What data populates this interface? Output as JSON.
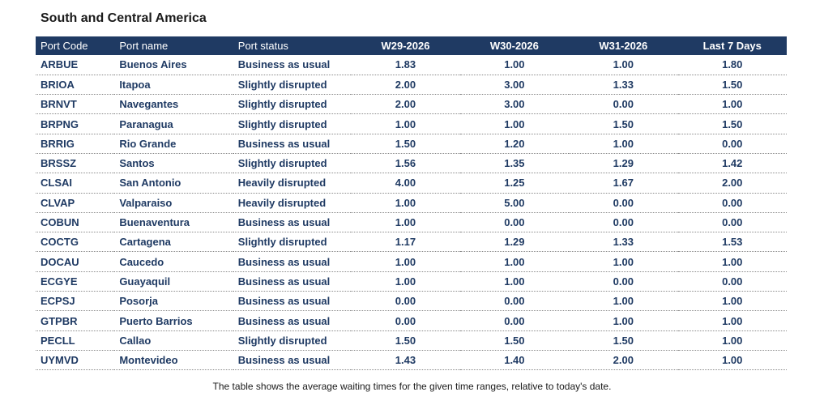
{
  "title": "South and Central America",
  "headers": [
    "Port Code",
    "Port name",
    "Port status",
    "W29-2026",
    "W30-2026",
    "W31-2026",
    "Last 7 Days"
  ],
  "rows": [
    [
      "ARBUE",
      "Buenos Aires",
      "Business as usual",
      "1.83",
      "1.00",
      "1.00",
      "1.80"
    ],
    [
      "BRIOA",
      "Itapoa",
      "Slightly disrupted",
      "2.00",
      "3.00",
      "1.33",
      "1.50"
    ],
    [
      "BRNVT",
      "Navegantes",
      "Slightly disrupted",
      "2.00",
      "3.00",
      "0.00",
      "1.00"
    ],
    [
      "BRPNG",
      "Paranagua",
      "Slightly disrupted",
      "1.00",
      "1.00",
      "1.50",
      "1.50"
    ],
    [
      "BRRIG",
      "Rio Grande",
      "Business as usual",
      "1.50",
      "1.20",
      "1.00",
      "0.00"
    ],
    [
      "BRSSZ",
      "Santos",
      "Slightly disrupted",
      "1.56",
      "1.35",
      "1.29",
      "1.42"
    ],
    [
      "CLSAI",
      "San Antonio",
      "Heavily disrupted",
      "4.00",
      "1.25",
      "1.67",
      "2.00"
    ],
    [
      "CLVAP",
      "Valparaiso",
      "Heavily disrupted",
      "1.00",
      "5.00",
      "0.00",
      "0.00"
    ],
    [
      "COBUN",
      "Buenaventura",
      "Business as usual",
      "1.00",
      "0.00",
      "0.00",
      "0.00"
    ],
    [
      "COCTG",
      "Cartagena",
      "Slightly disrupted",
      "1.17",
      "1.29",
      "1.33",
      "1.53"
    ],
    [
      "DOCAU",
      "Caucedo",
      "Business as usual",
      "1.00",
      "1.00",
      "1.00",
      "1.00"
    ],
    [
      "ECGYE",
      "Guayaquil",
      "Business as usual",
      "1.00",
      "1.00",
      "0.00",
      "0.00"
    ],
    [
      "ECPSJ",
      "Posorja",
      "Business as usual",
      "0.00",
      "0.00",
      "1.00",
      "1.00"
    ],
    [
      "GTPBR",
      "Puerto Barrios",
      "Business as usual",
      "0.00",
      "0.00",
      "1.00",
      "1.00"
    ],
    [
      "PECLL",
      "Callao",
      "Slightly disrupted",
      "1.50",
      "1.50",
      "1.50",
      "1.00"
    ],
    [
      "UYMVD",
      "Montevideo",
      "Business as usual",
      "1.43",
      "1.40",
      "2.00",
      "1.00"
    ]
  ],
  "footnote": "The table shows the average waiting times for the given time ranges, relative to today's date.",
  "colors": {
    "header_bg": "#1f3a63",
    "header_text": "#ffffff",
    "cell_text": "#1f3a63"
  }
}
